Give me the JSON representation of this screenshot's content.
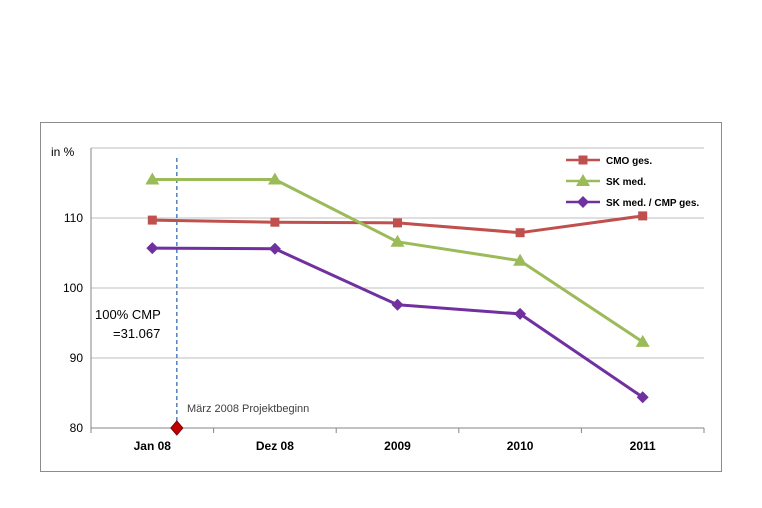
{
  "chart_data": {
    "type": "line",
    "ylabel": "in %",
    "categories": [
      "Jan 08",
      "Dez 08",
      "2009",
      "2010",
      "2011"
    ],
    "y_ticks": [
      80,
      90,
      100,
      110
    ],
    "ylim": [
      80,
      120
    ],
    "grid": true,
    "legend_position": "top-right",
    "series": [
      {
        "name": "CMO ges.",
        "color": "#c0504d",
        "marker": "square",
        "values": [
          109.7,
          109.4,
          109.3,
          107.9,
          110.3
        ]
      },
      {
        "name": "SK med.",
        "color": "#9bbb59",
        "marker": "triangle",
        "values": [
          115.5,
          115.5,
          106.6,
          103.9,
          92.3
        ]
      },
      {
        "name": "SK med. / CMP ges.",
        "color": "#7030a0",
        "marker": "diamond",
        "values": [
          105.7,
          105.6,
          97.6,
          96.3,
          84.4
        ]
      }
    ],
    "annotations": {
      "baseline_line1": "100% CMP",
      "baseline_line2": "=31.067",
      "project_start": "März 2008 Projektbeginn",
      "project_start_x": 0.2,
      "project_start_y": 80,
      "project_start_color": "#c00000"
    }
  }
}
